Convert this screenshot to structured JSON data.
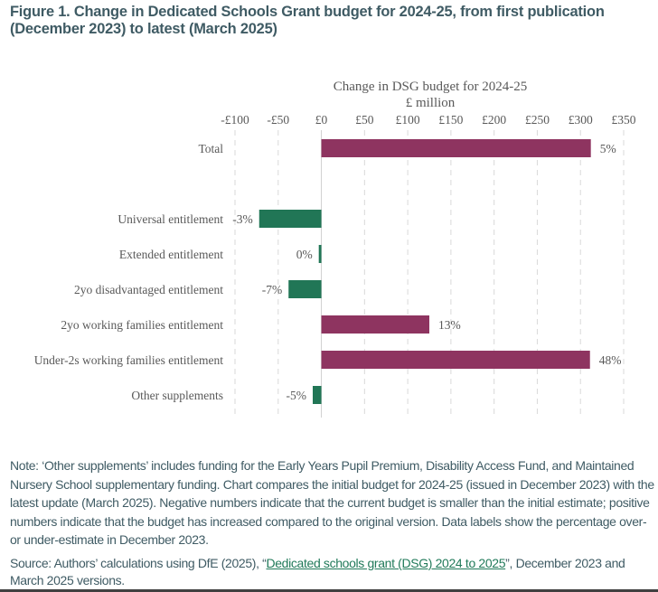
{
  "figure": {
    "title": "Figure 1. Change in Dedicated Schools Grant budget for 2024-25, from first publication (December 2023) to latest (March 2025)"
  },
  "chart_data": {
    "type": "bar",
    "orientation": "horizontal",
    "title": "Change in DSG budget for 2024-25",
    "subtitle": "£ million",
    "xlim": [
      -100,
      350
    ],
    "x_ticks": [
      -100,
      -50,
      0,
      50,
      100,
      150,
      200,
      250,
      300,
      350
    ],
    "x_tick_labels": [
      "-£100",
      "-£50",
      "£0",
      "£50",
      "£100",
      "£150",
      "£200",
      "£250",
      "£300",
      "£350"
    ],
    "grid": "vertical dashed",
    "categories": [
      "Total",
      "",
      "Universal entitlement",
      "Extended entitlement",
      "2yo disadvantaged entitlement",
      "2yo working families entitlement",
      "Under-2s working families entitlement",
      "Other supplements"
    ],
    "values": [
      312,
      null,
      -72,
      -3,
      -38,
      125,
      311,
      -10
    ],
    "data_labels": [
      "5%",
      "",
      "-3%",
      "0%",
      "-7%",
      "13%",
      "48%",
      "-5%"
    ],
    "colors": {
      "positive": "#8e3460",
      "negative": "#217656"
    }
  },
  "note": "Note: ‘Other supplements’ includes funding for the Early Years Pupil Premium, Disability Access Fund, and Maintained Nursery School supplementary funding. Chart compares the initial budget for 2024-25 (issued in December 2023) with the latest update (March 2025). Negative numbers indicate that the current budget is smaller than the initial estimate; positive numbers indicate that the budget has increased compared to the original version. Data labels show the percentage over- or under-estimate in December 2023.",
  "source": {
    "prefix": "Source: Authors’ calculations using DfE (2025), “",
    "link_text": "Dedicated schools grant (DSG) 2024 to 2025",
    "suffix": "”, December 2023 and March 2025 versions."
  }
}
